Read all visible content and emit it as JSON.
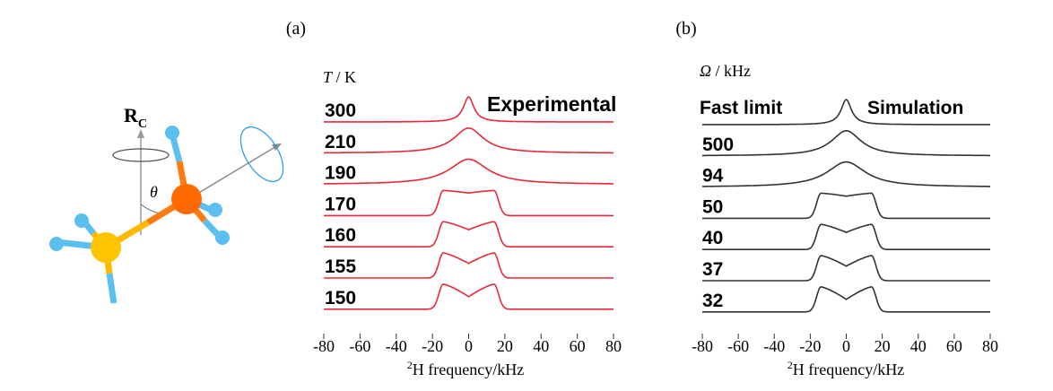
{
  "figure": {
    "panel_a_label": "(a)",
    "panel_b_label": "(b)",
    "molecule": {
      "axis_label_main": "R",
      "axis_label_sub": "C",
      "angle_label": "θ"
    }
  },
  "colors": {
    "experimental_line": "#e8283a",
    "simulation_line": "#333333",
    "carbon_front": "#ff6a00",
    "carbon_back": "#ffc400",
    "hydrogen": "#5bc0f0",
    "ellipse": "#2aa0e8",
    "axis_gray": "#888888"
  },
  "chart_data": [
    {
      "type": "line",
      "panel": "a",
      "legend_title_symbol": "T",
      "legend_title_unit": " / K",
      "annotation": "Experimental",
      "xlabel_sup": "2",
      "xlabel": "H frequency/kHz",
      "xlim": [
        -80,
        80
      ],
      "xticks": [
        -80,
        -60,
        -40,
        -20,
        0,
        20,
        40,
        60,
        80
      ],
      "series": [
        {
          "name": "300",
          "shape": "narrow",
          "width": 3.5,
          "dip": 0
        },
        {
          "name": "210",
          "shape": "peak",
          "width": 10,
          "dip": 0
        },
        {
          "name": "190",
          "shape": "peak",
          "width": 13,
          "dip": 0.05
        },
        {
          "name": "170",
          "shape": "pake",
          "width": 14,
          "dip": 0.1
        },
        {
          "name": "160",
          "shape": "pake",
          "width": 14,
          "dip": 0.32
        },
        {
          "name": "155",
          "shape": "pake",
          "width": 14,
          "dip": 0.42
        },
        {
          "name": "150",
          "shape": "pake",
          "width": 14,
          "dip": 0.5
        }
      ]
    },
    {
      "type": "line",
      "panel": "b",
      "legend_title_symbol": "Ω",
      "legend_title_unit": " / kHz",
      "annotation_left": "Fast limit",
      "annotation": "Simulation",
      "xlabel_sup": "2",
      "xlabel": "H frequency/kHz",
      "xlim": [
        -80,
        80
      ],
      "xticks": [
        -80,
        -60,
        -40,
        -20,
        0,
        20,
        40,
        60,
        80
      ],
      "series": [
        {
          "name": "",
          "shape": "narrow",
          "width": 3.5,
          "dip": 0
        },
        {
          "name": "500",
          "shape": "peak",
          "width": 10,
          "dip": 0
        },
        {
          "name": "94",
          "shape": "peak",
          "width": 13,
          "dip": 0.05
        },
        {
          "name": "50",
          "shape": "pake",
          "width": 14,
          "dip": 0.12
        },
        {
          "name": "40",
          "shape": "pake",
          "width": 14,
          "dip": 0.32
        },
        {
          "name": "37",
          "shape": "pake",
          "width": 14,
          "dip": 0.42
        },
        {
          "name": "32",
          "shape": "pake",
          "width": 14,
          "dip": 0.5
        }
      ]
    }
  ]
}
